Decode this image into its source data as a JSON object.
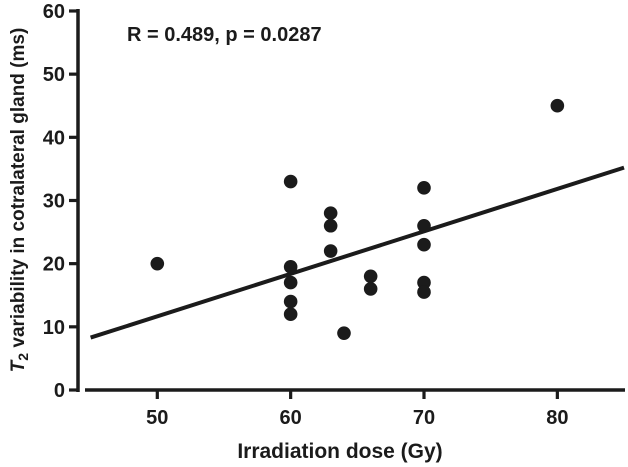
{
  "figure": {
    "background": "#ffffff",
    "ink_color": "#1b1b1b"
  },
  "chart_data": {
    "type": "scatter",
    "title": "",
    "annotation": "R = 0.489, p = 0.0287",
    "xlabel": "Irradiation dose (Gy)",
    "ylabel": {
      "variable_italic": "T",
      "variable_subscript": "2",
      "rest": " variability in cotralateral gland (ms)"
    },
    "xlim": [
      45,
      85
    ],
    "ylim": [
      0,
      60
    ],
    "xticks": [
      "50",
      "60",
      "70",
      "80"
    ],
    "yticks": [
      "0",
      "10",
      "20",
      "30",
      "40",
      "50",
      "60"
    ],
    "grid": false,
    "legend": false,
    "marker": {
      "shape": "circle",
      "radius_px": 6.8,
      "color": "#1b1b1b"
    },
    "points": [
      {
        "x": 50,
        "y": 20
      },
      {
        "x": 60,
        "y": 33
      },
      {
        "x": 60,
        "y": 19.5
      },
      {
        "x": 60,
        "y": 17
      },
      {
        "x": 60,
        "y": 14
      },
      {
        "x": 60,
        "y": 12
      },
      {
        "x": 63,
        "y": 28
      },
      {
        "x": 63,
        "y": 26
      },
      {
        "x": 63,
        "y": 22
      },
      {
        "x": 64,
        "y": 9
      },
      {
        "x": 66,
        "y": 18
      },
      {
        "x": 66,
        "y": 16
      },
      {
        "x": 70,
        "y": 32
      },
      {
        "x": 70,
        "y": 26
      },
      {
        "x": 70,
        "y": 23
      },
      {
        "x": 70,
        "y": 17
      },
      {
        "x": 70,
        "y": 15.5
      },
      {
        "x": 80,
        "y": 45
      }
    ],
    "regression_line": {
      "x1": 45,
      "y1": 8.3,
      "x2": 85,
      "y2": 35.2
    }
  }
}
